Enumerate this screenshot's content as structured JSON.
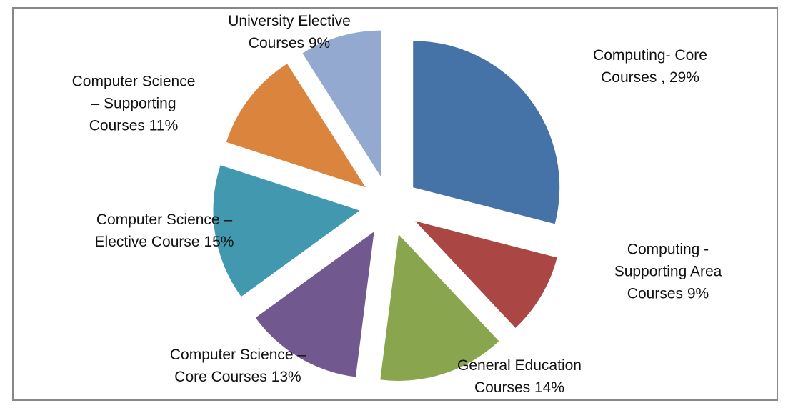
{
  "chart_data": {
    "type": "pie",
    "categories": [
      "Computing- Core Courses ,",
      "Computing - Supporting Area Courses",
      "General Education Courses",
      "Computer Science – Core Courses",
      "Computer Science – Elective Course",
      "Computer Science – Supporting Courses",
      "University Elective Courses"
    ],
    "values": [
      29,
      9,
      14,
      13,
      15,
      11,
      9
    ],
    "value_labels": [
      "29%",
      "9%",
      "14%",
      "13%",
      "15%",
      "11%",
      "9%"
    ],
    "colors": [
      "#4572a7",
      "#aa4643",
      "#89a54e",
      "#71588f",
      "#4198af",
      "#db843d",
      "#93a9cf"
    ]
  }
}
